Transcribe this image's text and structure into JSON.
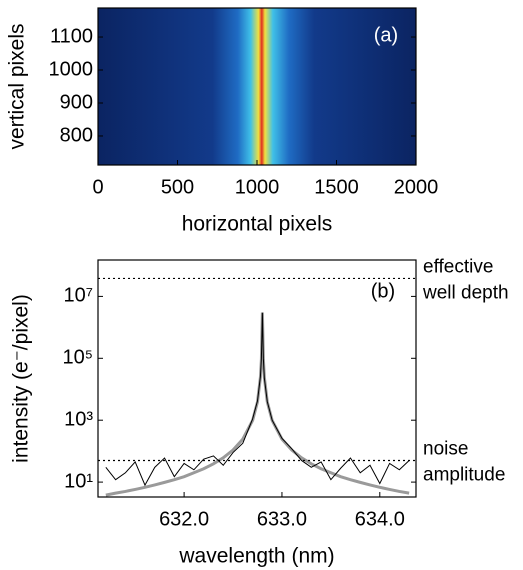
{
  "chart_data": [
    {
      "type": "image",
      "annotation": "(a)",
      "xlabel": "horizontal pixels",
      "ylabel": "vertical pixels",
      "xlim": [
        0,
        2000
      ],
      "xticks": [
        0,
        500,
        1000,
        1500,
        2000
      ],
      "ylim": [
        712,
        1188
      ],
      "yticks": [
        800,
        900,
        1000,
        1100
      ]
    },
    {
      "type": "line",
      "annotation": "(b)",
      "xlabel": "wavelength (nm)",
      "ylabel": "intensity (e⁻/pixel)",
      "yscale": "log",
      "xlim": [
        631.12,
        634.37
      ],
      "xticks": [
        {
          "value": 632,
          "label": "632.0"
        },
        {
          "value": 633,
          "label": "633.0"
        },
        {
          "value": 634,
          "label": "634.0"
        }
      ],
      "ylim": [
        3.3,
        150000000
      ],
      "yticks": [
        {
          "value": 10,
          "label": "10¹"
        },
        {
          "value": 1000,
          "label": "10³"
        },
        {
          "value": 100000,
          "label": "10⁵"
        },
        {
          "value": 10000000,
          "label": "10⁷"
        }
      ],
      "x": [
        631.2,
        631.3,
        631.4,
        631.5,
        631.6,
        631.7,
        631.8,
        631.9,
        632.0,
        632.1,
        632.2,
        632.3,
        632.4,
        632.5,
        632.6,
        632.7,
        632.75,
        632.78,
        632.79,
        632.8,
        632.81,
        632.82,
        632.85,
        632.9,
        633.0,
        633.1,
        633.2,
        633.3,
        633.4,
        633.5,
        633.6,
        633.7,
        633.8,
        633.9,
        634.0,
        634.1,
        634.2,
        634.3
      ],
      "series": [
        {
          "color": "#9a9a9a",
          "width": 3,
          "values": [
            3.8,
            4.4,
            5,
            5.8,
            6.8,
            8.1,
            9.8,
            12,
            15,
            20,
            27,
            39,
            61,
            109,
            245,
            980,
            3920,
            24500,
            94000,
            3000000,
            94000,
            24500,
            3920,
            980,
            245,
            109,
            61,
            39,
            27,
            20,
            15,
            12,
            9.8,
            8.1,
            6.8,
            5.8,
            5,
            4.4
          ]
        },
        {
          "color": "#000000",
          "width": 1,
          "values": [
            30,
            12,
            20,
            45,
            8,
            30,
            60,
            15,
            40,
            25,
            55,
            70,
            35,
            90,
            180,
            1100,
            4200,
            26000,
            100000,
            3000000,
            98000,
            23000,
            4000,
            1000,
            260,
            120,
            50,
            30,
            45,
            12,
            28,
            60,
            20,
            35,
            9,
            40,
            25,
            50
          ]
        }
      ],
      "reference_lines": [
        {
          "value": 38000000,
          "label": [
            "effective",
            "well depth"
          ]
        },
        {
          "value": 50,
          "label": [
            "noise",
            "amplitude"
          ]
        }
      ]
    }
  ]
}
